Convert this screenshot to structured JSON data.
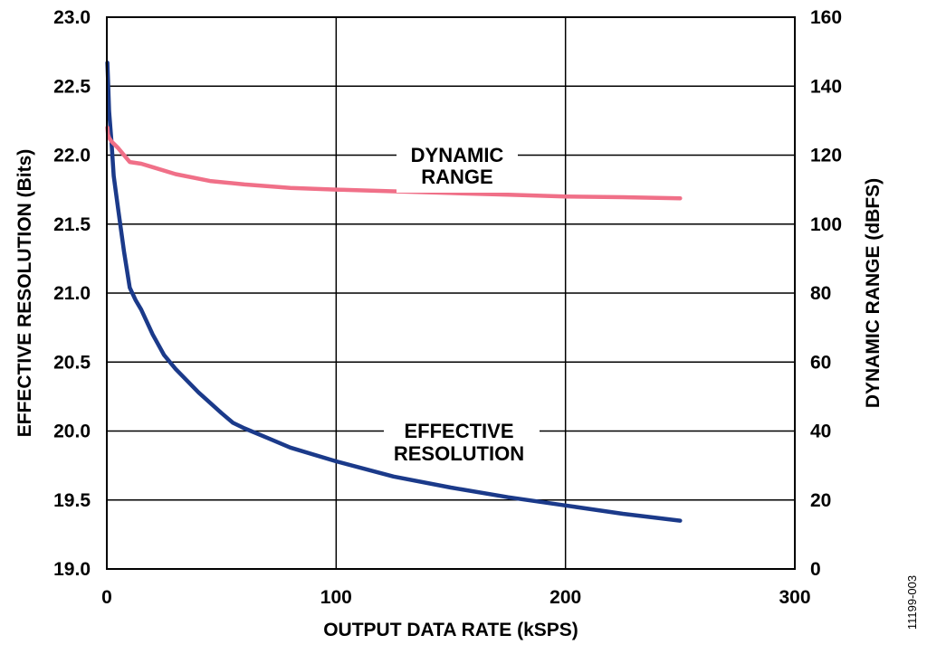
{
  "chart_data": {
    "type": "line",
    "title": "",
    "xlabel": "OUTPUT DATA RATE (kSPS)",
    "ylabel_left": "EFFECTIVE RESOLUTION (Bits)",
    "ylabel_right": "DYNAMIC RANGE (dBFS)",
    "xlim": [
      0,
      300
    ],
    "ylim_left": [
      19.0,
      23.0
    ],
    "ylim_right": [
      0,
      160
    ],
    "x_ticks": [
      "0",
      "100",
      "200",
      "300"
    ],
    "y_left_ticks": [
      "19.0",
      "19.5",
      "20.0",
      "20.5",
      "21.0",
      "21.5",
      "22.0",
      "22.5",
      "23.0"
    ],
    "y_right_ticks": [
      "0",
      "20",
      "40",
      "60",
      "80",
      "100",
      "120",
      "140",
      "160"
    ],
    "grid": true,
    "series": [
      {
        "name": "EFFECTIVE RESOLUTION",
        "axis": "left",
        "color": "#1b3a8a",
        "x": [
          0.25,
          0.5,
          1,
          2,
          3,
          5,
          7.5,
          10,
          12.5,
          15,
          20,
          25,
          30,
          40,
          50,
          55,
          60,
          70,
          80,
          100,
          125,
          150,
          175,
          200,
          225,
          250
        ],
        "y": [
          22.67,
          22.55,
          22.32,
          22.1,
          21.85,
          21.6,
          21.3,
          21.04,
          20.95,
          20.88,
          20.7,
          20.55,
          20.45,
          20.28,
          20.13,
          20.06,
          20.02,
          19.95,
          19.88,
          19.78,
          19.67,
          19.59,
          19.52,
          19.46,
          19.4,
          19.35
        ]
      },
      {
        "name": "DYNAMIC RANGE",
        "axis": "right",
        "color": "#f07088",
        "x": [
          0.25,
          0.5,
          1,
          2,
          5,
          10,
          15,
          20,
          30,
          45,
          60,
          80,
          100,
          125,
          150,
          175,
          200,
          225,
          250
        ],
        "y": [
          128,
          126,
          125,
          124,
          122,
          118,
          117.5,
          116.5,
          114.5,
          112.5,
          111.5,
          110.5,
          110,
          109.5,
          109,
          108.5,
          108,
          107.8,
          107.5
        ]
      }
    ],
    "annotations": [
      {
        "text": "DYNAMIC",
        "series": "DYNAMIC RANGE"
      },
      {
        "text": "RANGE",
        "series": "DYNAMIC RANGE"
      },
      {
        "text": "EFFECTIVE",
        "series": "EFFECTIVE RESOLUTION"
      },
      {
        "text": "RESOLUTION",
        "series": "EFFECTIVE RESOLUTION"
      }
    ]
  },
  "figure_id": "11199-003"
}
